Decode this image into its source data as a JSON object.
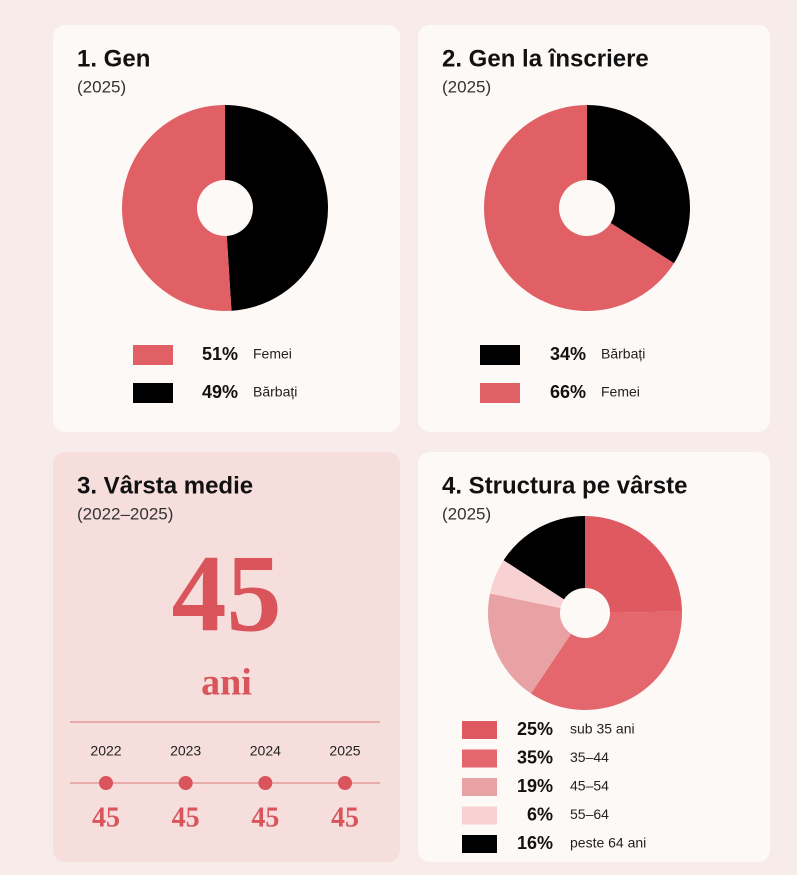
{
  "chart_data": [
    {
      "type": "pie",
      "title": "1. Gen",
      "subtitle": "(2025)",
      "categories": [
        "Femei",
        "Bărbați"
      ],
      "values": [
        51,
        49
      ],
      "value_labels": [
        "51%",
        "49%"
      ],
      "colors": [
        "#e06066",
        "#000000"
      ]
    },
    {
      "type": "pie",
      "title": "2. Gen la înscriere",
      "subtitle": "(2025)",
      "categories": [
        "Bărbați",
        "Femei"
      ],
      "values": [
        34,
        66
      ],
      "value_labels": [
        "34%",
        "66%"
      ],
      "colors": [
        "#000000",
        "#e06066"
      ]
    },
    {
      "type": "timeline",
      "title": "3. Vârsta medie",
      "subtitle": "(2022–2025)",
      "value": 45,
      "unit": "ani",
      "categories": [
        "2022",
        "2023",
        "2024",
        "2025"
      ],
      "values": [
        45,
        45,
        45,
        45
      ],
      "color": "#d9555b"
    },
    {
      "type": "pie",
      "title": "4. Structura pe vârste",
      "subtitle": "(2025)",
      "categories": [
        "sub 35 ani",
        "35–44",
        "45–54",
        "55–64",
        "peste 64 ani"
      ],
      "values": [
        25,
        35,
        19,
        6,
        16
      ],
      "value_labels": [
        "25%",
        "35%",
        "19%",
        "6%",
        "16%"
      ],
      "colors": [
        "#df5a60",
        "#e3676c",
        "#e9a2a4",
        "#f8d1d3",
        "#000000"
      ]
    }
  ]
}
